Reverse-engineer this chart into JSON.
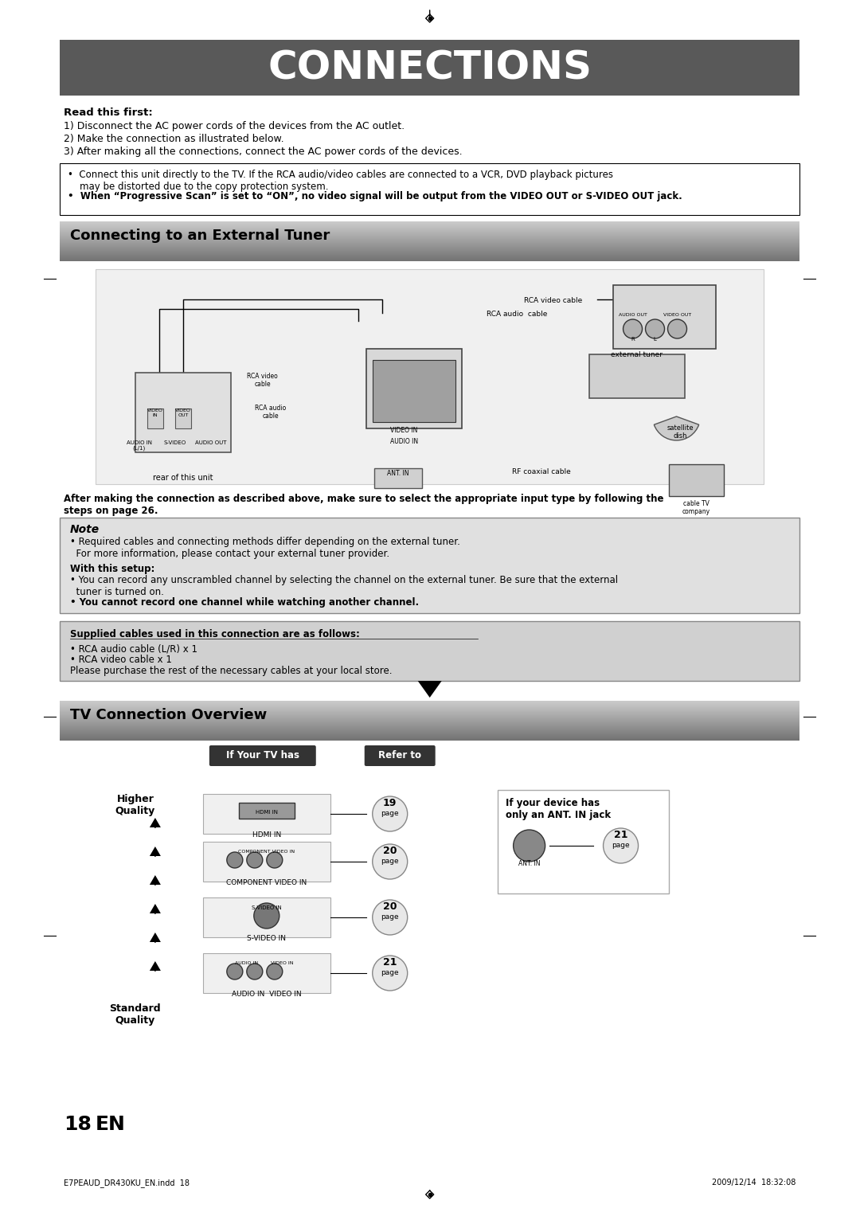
{
  "title": "CONNECTIONS",
  "title_bg": "#595959",
  "title_color": "#ffffff",
  "page_bg": "#ffffff",
  "section1_title": "Connecting to an External Tuner",
  "section2_title": "TV Connection Overview",
  "read_first_bold": "Read this first:",
  "read_first_items": [
    "1) Disconnect the AC power cords of the devices from the AC outlet.",
    "2) Make the connection as illustrated below.",
    "3) After making all the connections, connect the AC power cords of the devices."
  ],
  "note_bullets": [
    "•  Connect this unit directly to the TV. If the RCA audio/video cables are connected to a VCR, DVD playback pictures\n    may be distorted due to the copy protection system.",
    "•  When “Progressive Scan” is set to “ON”, no video signal will be output from the VIDEO OUT or S-VIDEO OUT jack."
  ],
  "note_section_title": "Note",
  "note_text1": "• Required cables and connecting methods differ depending on the external tuner.\n  For more information, please contact your external tuner provider.",
  "note_text2_bold": "With this setup:",
  "note_text3": "• You can record any unscrambled channel by selecting the channel on the external tuner. Be sure that the external\n  tuner is turned on.",
  "note_text4_bold": "• You cannot record one channel while watching another channel.",
  "supplied_title": "Supplied cables used in this connection are as follows:",
  "supplied_items": [
    "• RCA audio cable (L/R) x 1",
    "• RCA video cable x 1",
    "Please purchase the rest of the necessary cables at your local store."
  ],
  "tv_table_header1": "If Your TV has",
  "tv_table_header2": "Refer to",
  "tv_rows": [
    {
      "label": "HDMI IN",
      "page": "19"
    },
    {
      "label": "COMPONENT VIDEO IN",
      "page": "20"
    },
    {
      "label": "S-VIDEO IN",
      "page": "20"
    },
    {
      "label": "AUDIO IN  VIDEO IN",
      "page": "21"
    }
  ],
  "higher_quality": "Higher\nQuality",
  "standard_quality": "Standard\nQuality",
  "ant_in_box": "If your device has\nonly an ANT. IN jack",
  "ant_page": "21",
  "page_number": "18",
  "page_en": "EN",
  "footer_left": "E7PEAUD_DR430KU_EN.indd  18",
  "footer_right": "2009/12/14  18:32:08",
  "section_header_bg": "#a8a8a8",
  "section_header_color": "#000000",
  "note_bg": "#e8e8e8",
  "supplied_bg": "#c8c8c8",
  "tv_overview_bg": "#b0b0b0"
}
